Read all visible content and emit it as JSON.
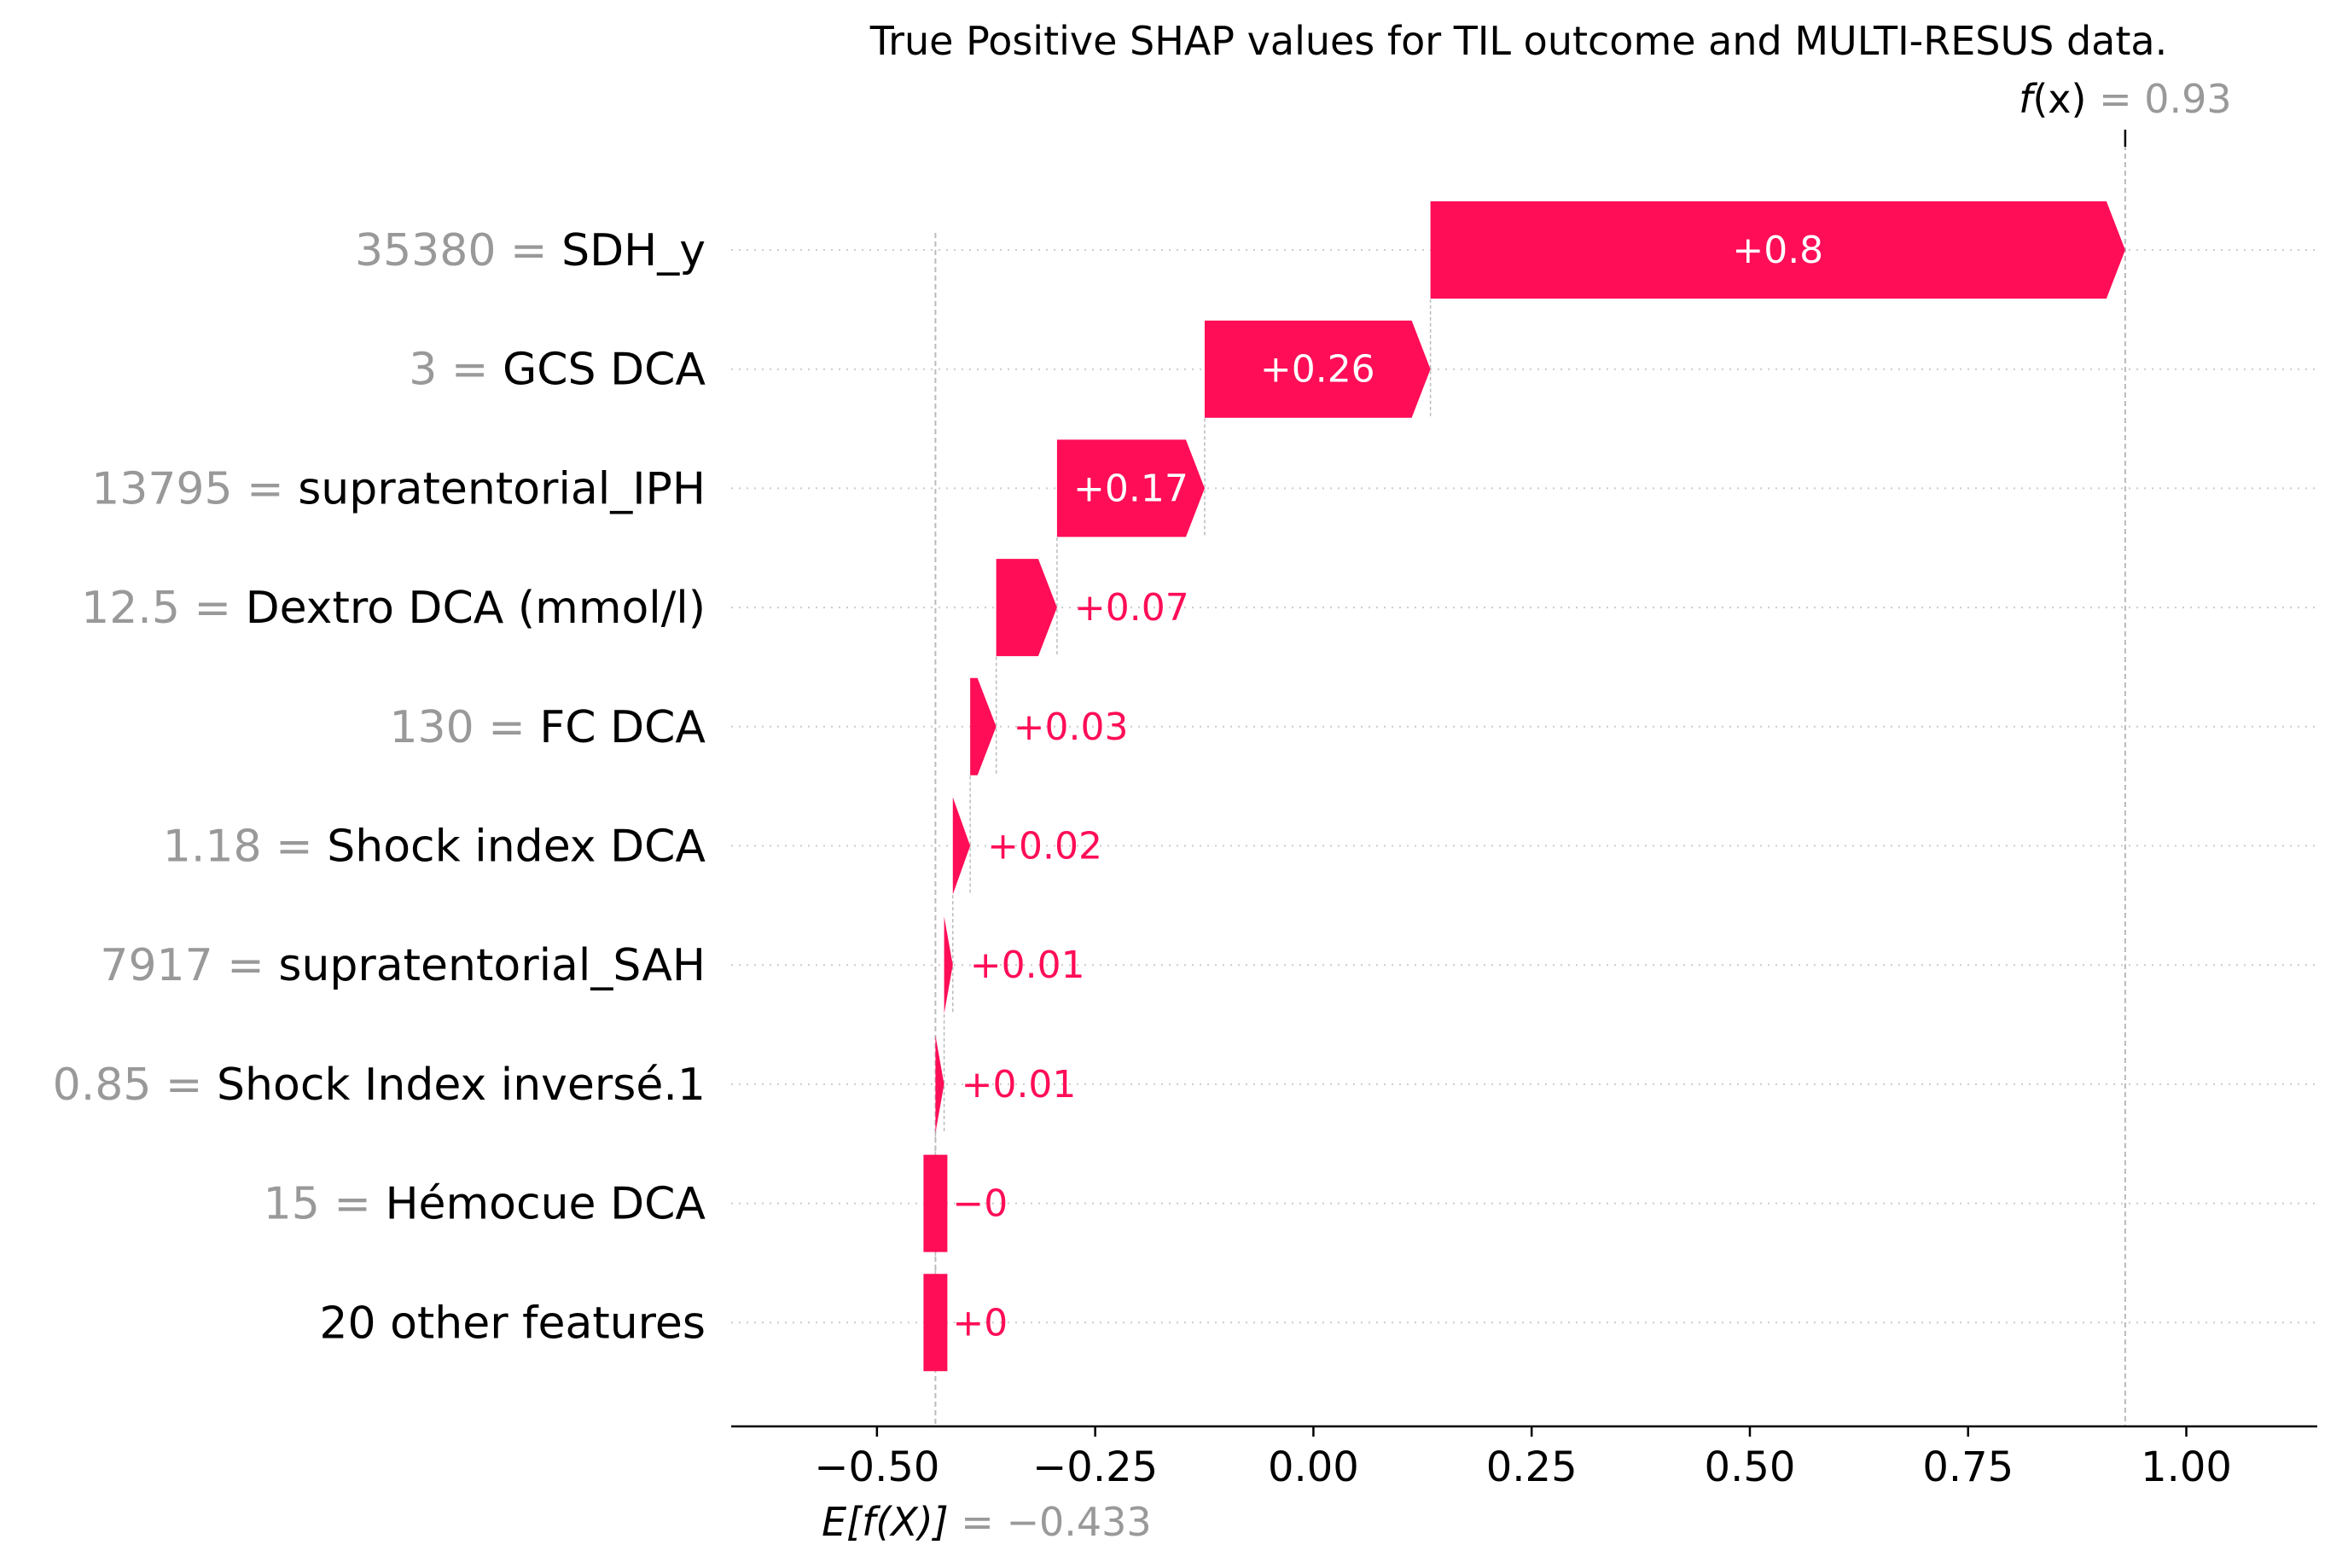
{
  "chart_data": {
    "type": "waterfall",
    "title": "True Positive SHAP values for TIL outcome and MULTI-RESUS data.",
    "base_value": -0.433,
    "output_value": 0.93,
    "fx_label": {
      "f": "f",
      "x": "(x)",
      "value_text": " = 0.93"
    },
    "efx_label": {
      "prefix": "E[f(X)]",
      "value_text": " = −0.433"
    },
    "xlim": [
      -0.667,
      1.15
    ],
    "xticks": [
      -0.5,
      -0.25,
      0.0,
      0.25,
      0.5,
      0.75,
      1.0
    ],
    "xtick_labels": [
      "−0.50",
      "−0.25",
      "0.00",
      "0.25",
      "0.50",
      "0.75",
      "1.00"
    ],
    "features": [
      {
        "value": "35380",
        "name": "SDH_y",
        "shap": 0.8,
        "label": "+0.8"
      },
      {
        "value": "3",
        "name": "GCS DCA",
        "shap": 0.26,
        "label": "+0.26"
      },
      {
        "value": "13795",
        "name": "supratentorial_IPH",
        "shap": 0.17,
        "label": "+0.17"
      },
      {
        "value": "12.5",
        "name": "Dextro DCA (mmol/l)",
        "shap": 0.07,
        "label": "+0.07"
      },
      {
        "value": "130",
        "name": "FC  DCA",
        "shap": 0.03,
        "label": "+0.03"
      },
      {
        "value": "1.18",
        "name": "Shock index DCA",
        "shap": 0.02,
        "label": "+0.02"
      },
      {
        "value": "7917",
        "name": "supratentorial_SAH",
        "shap": 0.01,
        "label": "+0.01"
      },
      {
        "value": "0.85",
        "name": "Shock Index inversé.1",
        "shap": 0.01,
        "label": "+0.01"
      },
      {
        "value": "15",
        "name": "Hémocue DCA",
        "shap": -0.0,
        "label": "−0"
      },
      {
        "value": "",
        "name": "20 other features",
        "shap": 0.0,
        "label": "+0"
      }
    ],
    "colors": {
      "positive": "#ff0d57",
      "negative": "#1e88e5",
      "gray": "#999999",
      "text": "#000000"
    }
  }
}
